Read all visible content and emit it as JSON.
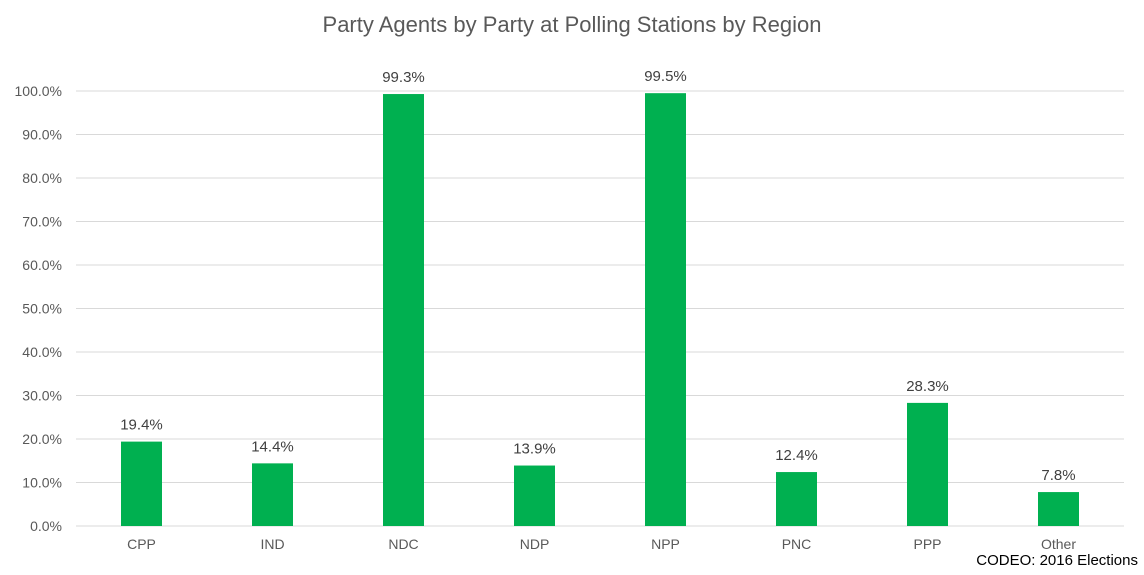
{
  "chart_data": {
    "type": "bar",
    "title": "Party Agents by Party at Polling Stations by Region",
    "categories": [
      "CPP",
      "IND",
      "NDC",
      "NDP",
      "NPP",
      "PNC",
      "PPP",
      "Other"
    ],
    "values": [
      19.4,
      14.4,
      99.3,
      13.9,
      99.5,
      12.4,
      28.3,
      7.8
    ],
    "data_labels": [
      "19.4%",
      "14.4%",
      "99.3%",
      "13.9%",
      "99.5%",
      "12.4%",
      "28.3%",
      "7.8%"
    ],
    "ylim": [
      0,
      100
    ],
    "yticks": [
      "0.0%",
      "10.0%",
      "20.0%",
      "30.0%",
      "40.0%",
      "50.0%",
      "60.0%",
      "70.0%",
      "80.0%",
      "90.0%",
      "100.0%"
    ],
    "grid": true,
    "legend": "none",
    "bar_color": "#00B050",
    "gridline_color": "#D9D9D9"
  },
  "source_note": "CODEO: 2016 Elections"
}
